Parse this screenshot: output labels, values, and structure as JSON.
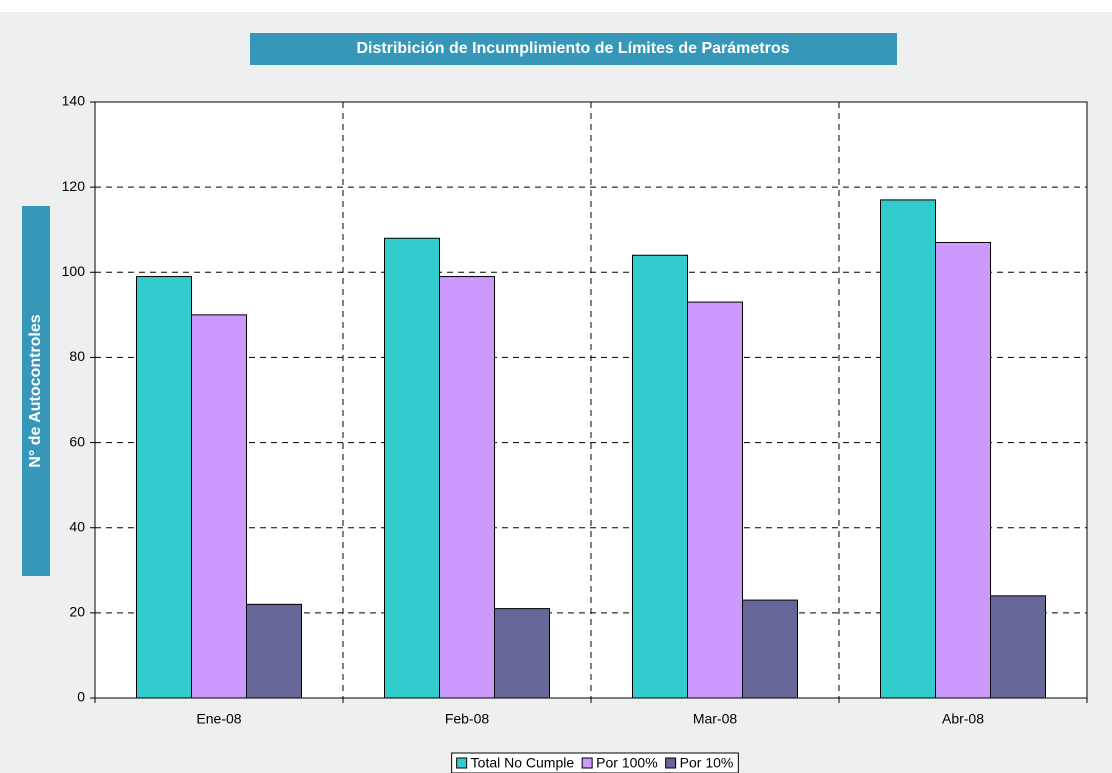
{
  "chart_data": {
    "type": "bar",
    "title": "Distribición de Incumplimiento de Límites de Parámetros",
    "y_label": "N° de Autocontroles",
    "categories": [
      "Ene-08",
      "Feb-08",
      "Mar-08",
      "Abr-08"
    ],
    "series": [
      {
        "name": "Total No Cumple",
        "color": "#33cccc",
        "values": [
          99,
          108,
          104,
          117
        ]
      },
      {
        "name": "Por 100%",
        "color": "#cc99ff",
        "values": [
          90,
          99,
          93,
          107
        ]
      },
      {
        "name": "Por 10%",
        "color": "#666699",
        "values": [
          22,
          21,
          23,
          24
        ]
      }
    ],
    "ylim": [
      0,
      140
    ],
    "yticks": [
      0,
      20,
      40,
      60,
      80,
      100,
      120,
      140
    ],
    "grid": true,
    "legend": "bottom"
  }
}
